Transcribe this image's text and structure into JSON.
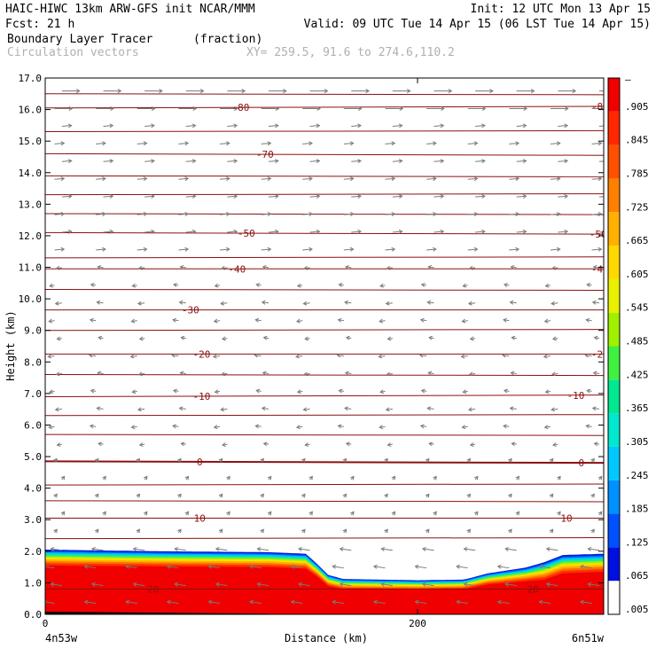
{
  "header": {
    "line1_left": "HAIC-HIWC 13km ARW-GFS init   NCAR/MMM",
    "line1_right": "Init: 12 UTC Mon 13 Apr 15",
    "line2_left": "Fcst:   21 h",
    "line2_right": "Valid: 09 UTC Tue 14 Apr 15 (06 LST Tue 14 Apr 15)",
    "field_name": "Boundary Layer Tracer",
    "field_unit": "(fraction)",
    "vector_label": "Circulation vectors",
    "xy_label": "XY= 259.5, 91.6 to 274.6,110.2"
  },
  "chart_data": {
    "type": "heatmap",
    "title": "Boundary Layer Tracer (fraction)",
    "xlabel": "Distance (km)",
    "ylabel": "Height (km)",
    "xlim": [
      0,
      300
    ],
    "ylim": [
      0,
      17
    ],
    "x_ticks": [
      {
        "value": 0,
        "label": "0"
      },
      {
        "value": 200,
        "label": "200"
      }
    ],
    "x_end_labels": {
      "left": "4n53w",
      "right": "6n51w"
    },
    "y_ticks": [
      {
        "value": 0,
        "label": "0.0"
      },
      {
        "value": 1,
        "label": "1.0"
      },
      {
        "value": 2,
        "label": "2.0"
      },
      {
        "value": 3,
        "label": "3.0"
      },
      {
        "value": 4,
        "label": "4.0"
      },
      {
        "value": 5,
        "label": "5.0"
      },
      {
        "value": 6,
        "label": "6.0"
      },
      {
        "value": 7,
        "label": "7.0"
      },
      {
        "value": 8,
        "label": "8.0"
      },
      {
        "value": 9,
        "label": "9.0"
      },
      {
        "value": 10,
        "label": "10.0"
      },
      {
        "value": 11,
        "label": "11.0"
      },
      {
        "value": 12,
        "label": "12.0"
      },
      {
        "value": 13,
        "label": "13.0"
      },
      {
        "value": 14,
        "label": "14.0"
      },
      {
        "value": 15,
        "label": "15.0"
      },
      {
        "value": 16,
        "label": "16.0"
      },
      {
        "value": 17,
        "label": "17.0"
      }
    ],
    "colorbar": {
      "labels": [
        ".005",
        ".065",
        ".125",
        ".185",
        ".245",
        ".305",
        ".365",
        ".425",
        ".485",
        ".545",
        ".605",
        ".665",
        ".725",
        ".785",
        ".845",
        ".905",
        "–"
      ],
      "colors": [
        "#ffffff",
        "#0010e0",
        "#0050ff",
        "#0090ff",
        "#00c8ff",
        "#00e8d0",
        "#00e890",
        "#40f040",
        "#a0f000",
        "#e8f000",
        "#ffd800",
        "#ffb000",
        "#ff8000",
        "#ff5000",
        "#ff2800",
        "#f00000"
      ]
    },
    "tracer_top_km": [
      [
        0,
        2.05
      ],
      [
        60,
        2.0
      ],
      [
        120,
        1.97
      ],
      [
        140,
        1.92
      ],
      [
        146,
        1.6
      ],
      [
        152,
        1.25
      ],
      [
        160,
        1.12
      ],
      [
        200,
        1.08
      ],
      [
        225,
        1.1
      ],
      [
        238,
        1.3
      ],
      [
        258,
        1.48
      ],
      [
        268,
        1.65
      ],
      [
        278,
        1.88
      ],
      [
        300,
        1.92
      ]
    ],
    "tracer_red_top_km": [
      [
        0,
        1.55
      ],
      [
        60,
        1.52
      ],
      [
        120,
        1.5
      ],
      [
        140,
        1.45
      ],
      [
        146,
        1.2
      ],
      [
        152,
        0.9
      ],
      [
        160,
        0.8
      ],
      [
        200,
        0.78
      ],
      [
        225,
        0.8
      ],
      [
        238,
        0.95
      ],
      [
        258,
        1.05
      ],
      [
        268,
        1.1
      ],
      [
        278,
        1.3
      ],
      [
        300,
        1.35
      ]
    ],
    "temperature_contours_C": [
      {
        "value": -80,
        "heights_km": [
          16.05,
          16.1
        ],
        "label_x_km": [
          105,
          298
        ]
      },
      {
        "value": -70,
        "heights_km": [
          14.6,
          14.55
        ],
        "label_x_km": [
          118
        ]
      },
      {
        "value": -50,
        "heights_km": [
          12.1,
          12.05
        ],
        "label_x_km": [
          108,
          297
        ]
      },
      {
        "value": -40,
        "heights_km": [
          10.95,
          10.95
        ],
        "label_x_km": [
          103,
          298
        ]
      },
      {
        "value": -30,
        "heights_km": [
          9.65,
          9.65
        ],
        "label_x_km": [
          78
        ]
      },
      {
        "value": -20,
        "heights_km": [
          8.25,
          8.25
        ],
        "label_x_km": [
          84,
          298
        ]
      },
      {
        "value": -10,
        "heights_km": [
          6.9,
          6.95
        ],
        "label_x_km": [
          84,
          285
        ]
      },
      {
        "value": 0,
        "heights_km": [
          4.85,
          4.8
        ],
        "label_x_km": [
          83,
          288
        ]
      },
      {
        "value": 10,
        "heights_km": [
          3.05,
          3.05
        ],
        "label_x_km": [
          83,
          280
        ]
      },
      {
        "value": 20,
        "heights_km": [
          0.8,
          0.8
        ],
        "label_x_km": [
          58,
          262
        ]
      }
    ],
    "extra_isotherms_km": [
      16.5,
      15.3,
      13.9,
      13.3,
      12.7,
      11.3,
      10.3,
      9.0,
      7.6,
      6.3,
      5.7,
      4.1,
      3.6,
      2.4
    ],
    "vectors": "circulation vectors on a regular grid; westerly near tropopause, weak elsewhere",
    "grid": false
  }
}
